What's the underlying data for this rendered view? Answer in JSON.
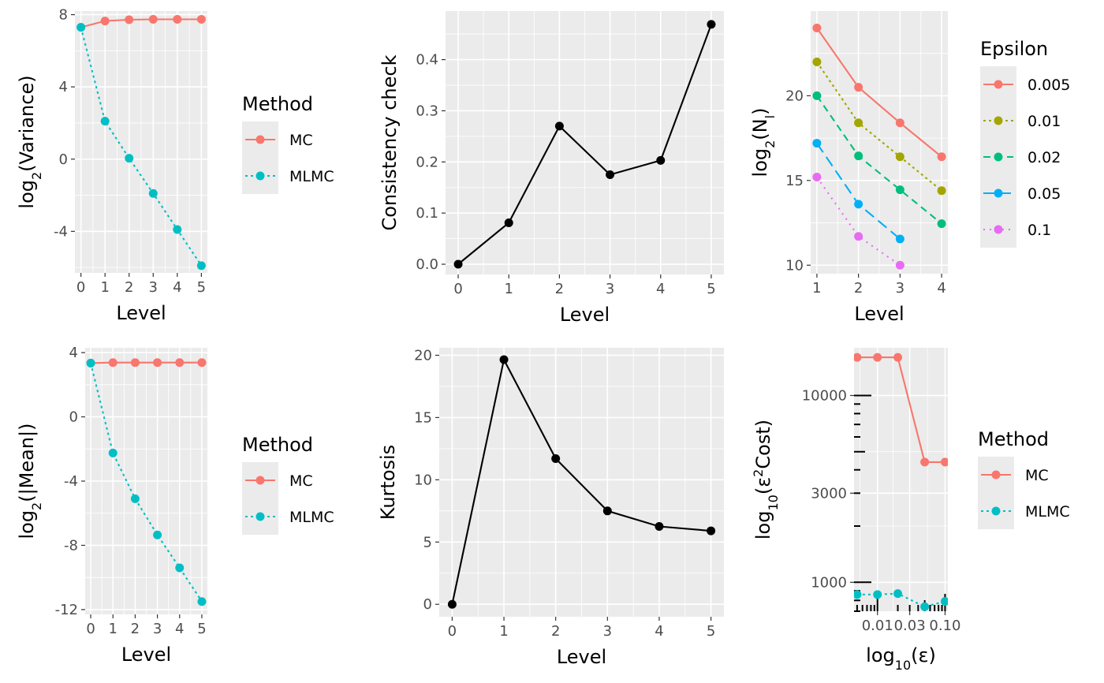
{
  "chart_data": [
    {
      "id": "variance",
      "type": "line",
      "ylabel_base": "log",
      "ylabel_sub": "2",
      "ylabel_rest": "(Variance)",
      "xlabel": "Level",
      "x": [
        0,
        1,
        2,
        3,
        4,
        5
      ],
      "x_ticks": [
        "0",
        "1",
        "2",
        "3",
        "4",
        "5"
      ],
      "xlim": [
        -0.25,
        5.25
      ],
      "ylim": [
        -6.3,
        8.2
      ],
      "y_ticks": [
        8,
        4,
        0,
        -4
      ],
      "y_tick_labels": [
        "8",
        "4",
        "0",
        "-4"
      ],
      "grid": true,
      "series": [
        {
          "name": "MC",
          "color": "#F8766D",
          "dash": "solid",
          "values": [
            7.3,
            7.65,
            7.72,
            7.74,
            7.74,
            7.74
          ]
        },
        {
          "name": "MLMC",
          "color": "#00BFC4",
          "dash": "dotted",
          "values": [
            7.3,
            2.1,
            0.05,
            -1.9,
            -3.9,
            -5.9
          ]
        }
      ],
      "legend": {
        "title": "Method",
        "position": "right",
        "entries": [
          "MC",
          "MLMC"
        ]
      }
    },
    {
      "id": "consistency",
      "type": "line",
      "ylabel": "Consistency check",
      "xlabel": "Level",
      "x": [
        0,
        1,
        2,
        3,
        4,
        5
      ],
      "x_ticks": [
        "0",
        "1",
        "2",
        "3",
        "4",
        "5"
      ],
      "xlim": [
        -0.25,
        5.25
      ],
      "ylim": [
        -0.02,
        0.495
      ],
      "y_ticks": [
        0.0,
        0.1,
        0.2,
        0.3,
        0.4
      ],
      "y_tick_labels": [
        "0.0",
        "0.1",
        "0.2",
        "0.3",
        "0.4"
      ],
      "grid": true,
      "series": [
        {
          "color": "#000000",
          "dash": "solid",
          "values": [
            0.0,
            0.081,
            0.27,
            0.175,
            0.203,
            0.469
          ]
        }
      ]
    },
    {
      "id": "samples",
      "type": "line",
      "ylabel_base": "log",
      "ylabel_sub": "2",
      "ylabel_rest": "(N",
      "ylabel_sub2": "l",
      "ylabel_end": ")",
      "xlabel": "Level",
      "x": [
        1,
        2,
        3,
        4
      ],
      "x_ticks": [
        "1",
        "2",
        "3",
        "4"
      ],
      "xlim": [
        0.85,
        4.15
      ],
      "ylim": [
        9.5,
        25
      ],
      "y_ticks": [
        10,
        15,
        20
      ],
      "y_tick_labels": [
        "10",
        "15",
        "20"
      ],
      "grid": true,
      "series": [
        {
          "name": "0.005",
          "color": "#F8766D",
          "dash": "solid",
          "values": [
            24.0,
            20.5,
            18.4,
            16.4
          ]
        },
        {
          "name": "0.01",
          "color": "#A3A500",
          "dash": "dotted",
          "values": [
            22.0,
            18.4,
            16.4,
            14.4
          ]
        },
        {
          "name": "0.02",
          "color": "#00BF7D",
          "dash": "dashed",
          "values": [
            20.0,
            16.45,
            14.45,
            12.45
          ]
        },
        {
          "name": "0.05",
          "color": "#00B0F6",
          "dash": "longdash",
          "values": [
            17.2,
            13.6,
            11.55,
            null
          ]
        },
        {
          "name": "0.1",
          "color": "#E76BF3",
          "dash": "dotted2",
          "values": [
            15.2,
            11.7,
            10.0,
            null
          ]
        }
      ],
      "legend": {
        "title": "Epsilon",
        "position": "right",
        "entries": [
          "0.005",
          "0.01",
          "0.02",
          "0.05",
          "0.1"
        ]
      }
    },
    {
      "id": "mean",
      "type": "line",
      "ylabel_base": "log",
      "ylabel_sub": "2",
      "ylabel_rest": "(|Mean|)",
      "xlabel": "Level",
      "x": [
        0,
        1,
        2,
        3,
        4,
        5
      ],
      "x_ticks": [
        "0",
        "1",
        "2",
        "3",
        "4",
        "5"
      ],
      "xlim": [
        -0.25,
        5.25
      ],
      "ylim": [
        -12.3,
        4.3
      ],
      "y_ticks": [
        4,
        0,
        -4,
        -8,
        -12
      ],
      "y_tick_labels": [
        "4",
        "0",
        "-4",
        "-8",
        "-12"
      ],
      "grid": true,
      "series": [
        {
          "name": "MC",
          "color": "#F8766D",
          "dash": "solid",
          "values": [
            3.35,
            3.38,
            3.38,
            3.38,
            3.38,
            3.38
          ]
        },
        {
          "name": "MLMC",
          "color": "#00BFC4",
          "dash": "dotted",
          "values": [
            3.35,
            -2.25,
            -5.1,
            -7.35,
            -9.4,
            -11.5
          ]
        }
      ],
      "legend": {
        "title": "Method",
        "position": "right",
        "entries": [
          "MC",
          "MLMC"
        ]
      }
    },
    {
      "id": "kurtosis",
      "type": "line",
      "ylabel": "Kurtosis",
      "xlabel": "Level",
      "x": [
        0,
        1,
        2,
        3,
        4,
        5
      ],
      "x_ticks": [
        "0",
        "1",
        "2",
        "3",
        "4",
        "5"
      ],
      "xlim": [
        -0.25,
        5.25
      ],
      "ylim": [
        -1,
        20.6
      ],
      "y_ticks": [
        0,
        5,
        10,
        15,
        20
      ],
      "y_tick_labels": [
        "0",
        "5",
        "10",
        "15",
        "20"
      ],
      "grid": true,
      "series": [
        {
          "color": "#000000",
          "dash": "solid",
          "values": [
            0.0,
            19.65,
            11.7,
            7.5,
            6.25,
            5.9
          ]
        }
      ]
    },
    {
      "id": "cost",
      "type": "line",
      "log_x": true,
      "log_y": true,
      "ylabel_base": "log",
      "ylabel_sub": "10",
      "ylabel_rest": "(ε",
      "ylabel_sup": "2",
      "ylabel_end": "Cost)",
      "xlabel_base": "log",
      "xlabel_sub": "10",
      "xlabel_rest": "(ε)",
      "x": [
        0.005,
        0.01,
        0.02,
        0.05,
        0.1
      ],
      "x_ticks": [
        0.01,
        0.03,
        0.1
      ],
      "x_tick_labels": [
        "0.01",
        "0.03",
        "0.10"
      ],
      "xlim": [
        0.0045,
        0.11
      ],
      "ylim": [
        700,
        18000
      ],
      "y_ticks": [
        1000,
        3000,
        10000
      ],
      "y_tick_labels": [
        "1000",
        "3000",
        "10000"
      ],
      "grid": true,
      "rug": true,
      "series": [
        {
          "name": "MC",
          "color": "#F8766D",
          "dash": "solid",
          "values": [
            16000,
            16000,
            16000,
            4400,
            4400
          ]
        },
        {
          "name": "MLMC",
          "color": "#00BFC4",
          "dash": "dotted",
          "values": [
            860,
            860,
            870,
            740,
            790
          ]
        }
      ],
      "legend": {
        "title": "Method",
        "position": "right",
        "entries": [
          "MC",
          "MLMC"
        ]
      }
    }
  ]
}
